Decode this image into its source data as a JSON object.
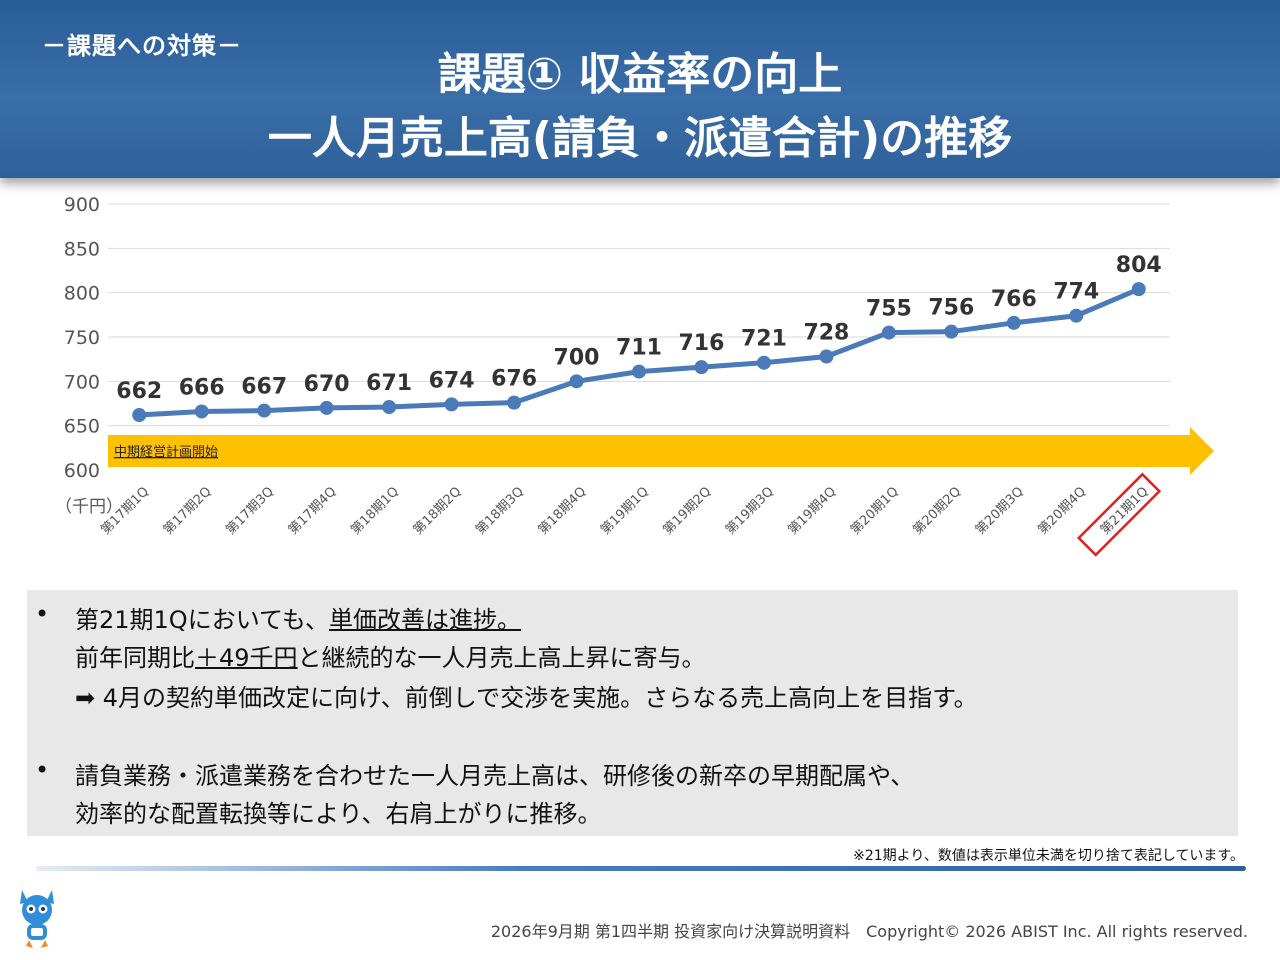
{
  "header": {
    "subtitle": "－課題への対策－",
    "title_line1": "課題① 収益率の向上",
    "title_line2": "一人月売上高(請負・派遣合計)の推移"
  },
  "chart_data": {
    "type": "line",
    "title": "一人月売上高(請負・派遣合計)の推移",
    "ylabel": "（千円）",
    "ylim": [
      600,
      900
    ],
    "yticks": [
      "900",
      "850",
      "800",
      "750",
      "700",
      "650",
      "600"
    ],
    "categories": [
      "第17期1Q",
      "第17期2Q",
      "第17期3Q",
      "第17期4Q",
      "第18期1Q",
      "第18期2Q",
      "第18期3Q",
      "第18期4Q",
      "第19期1Q",
      "第19期2Q",
      "第19期3Q",
      "第19期4Q",
      "第20期1Q",
      "第20期2Q",
      "第20期3Q",
      "第20期4Q",
      "第21期1Q"
    ],
    "series": [
      {
        "name": "一人月売上高",
        "values": [
          662,
          666,
          667,
          670,
          671,
          674,
          676,
          700,
          711,
          716,
          721,
          728,
          755,
          756,
          766,
          774,
          804
        ]
      }
    ],
    "highlight_category": "第21期1Q",
    "annotation": "中期経営計画開始",
    "line_color": "#4a7ab8",
    "arrow_color": "#ffc000",
    "highlight_color": "#e02020"
  },
  "notes": {
    "b1_prefix": "第21期1Qにおいても、",
    "b1_underline": "単価改善は進捗。",
    "b1_line2_prefix": "前年同期比",
    "b1_line2_underline": "＋49千円",
    "b1_line2_suffix": "と継続的な一人月売上高上昇に寄与。",
    "b1_line3": "➡ 4月の契約単価改定に向け、前倒しで交渉を実施。さらなる売上高向上を目指す。",
    "b2_line1": "請負業務・派遣業務を合わせた一人月売上高は、研修後の新卒の早期配属や、",
    "b2_line2": "効率的な配置転換等により、右肩上がりに推移。",
    "bullet": "•"
  },
  "footnote": "※21期より、数値は表示単位未満を切り捨て表記しています。",
  "footer": "2026年9月期 第1四半期 投資家向け決算説明資料　Copyright© 2026 ABIST Inc. All rights reserved."
}
